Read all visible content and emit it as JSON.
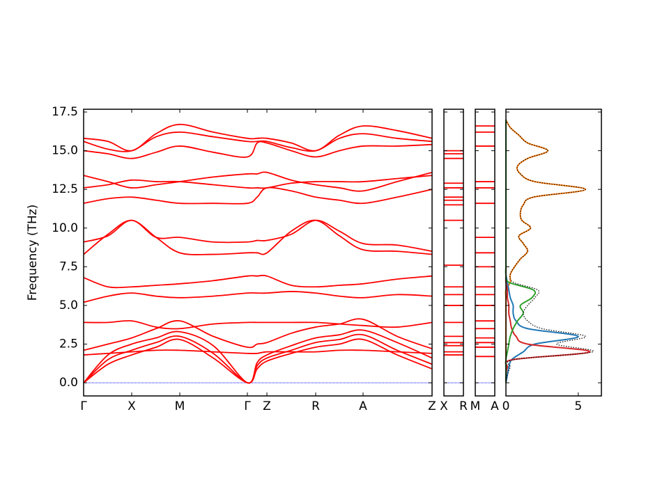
{
  "chart_data": {
    "type": "band",
    "ylabel": "Frequency (THz)",
    "ylim": [
      -0.85,
      17.68
    ],
    "yticks": [
      {
        "value": 0,
        "label": "0.0"
      },
      2.5,
      {
        "value": 5,
        "label": "5.0"
      },
      7.5,
      {
        "value": 10,
        "label": "10.0"
      },
      12.5,
      {
        "value": 15,
        "label": "15.0"
      },
      17.5
    ],
    "color": "#ff0000",
    "zero_color": "#0000ff",
    "panels": [
      {
        "xlim": [
          0,
          500
        ],
        "xticks": [
          {
            "value": 0,
            "label": "Γ"
          },
          {
            "value": 69,
            "label": "X"
          },
          {
            "value": 138,
            "label": "M"
          },
          {
            "value": 235,
            "label": "Γ"
          },
          {
            "value": 263,
            "label": "Z"
          },
          {
            "value": 333,
            "label": "R"
          },
          {
            "value": 401,
            "label": "A"
          },
          {
            "value": 500,
            "label": "Z"
          }
        ],
        "x": [
          0,
          35,
          69,
          104,
          138,
          186,
          235,
          249,
          263,
          298,
          333,
          367,
          401,
          450,
          500
        ],
        "series": [
          {
            "values": [
              0,
              1.2,
              1.8,
              2.3,
              2.8,
              1.6,
              0,
              0.9,
              1.4,
              1.9,
              2.3,
              2.5,
              2.8,
              1.8,
              0.9
            ]
          },
          {
            "values": [
              0,
              1.5,
              2.1,
              2.6,
              3.0,
              1.9,
              0,
              1.1,
              1.6,
              2.1,
              2.6,
              2.8,
              3.1,
              2.1,
              1.2
            ]
          },
          {
            "values": [
              0,
              1.8,
              2.5,
              2.9,
              3.3,
              2.4,
              0,
              1.3,
              1.8,
              2.4,
              2.9,
              3.1,
              3.4,
              2.6,
              1.6
            ]
          },
          {
            "values": [
              1.8,
              1.9,
              2.0,
              2.1,
              2.1,
              2.0,
              1.9,
              1.9,
              2.0,
              2.0,
              2.0,
              2.1,
              2.1,
              2.0,
              1.9
            ]
          },
          {
            "values": [
              2.1,
              2.5,
              2.9,
              3.5,
              4.0,
              3.0,
              2.3,
              2.5,
              2.6,
              3.2,
              3.6,
              3.8,
              4.1,
              3.0,
              2.2
            ]
          },
          {
            "values": [
              3.9,
              3.9,
              4.0,
              3.6,
              3.5,
              3.8,
              3.9,
              3.9,
              3.9,
              3.9,
              3.9,
              3.8,
              3.7,
              3.6,
              3.9
            ]
          },
          {
            "values": [
              5.2,
              5.6,
              5.8,
              5.6,
              5.5,
              5.6,
              5.8,
              5.8,
              5.8,
              5.9,
              5.8,
              5.6,
              5.5,
              5.7,
              5.6
            ]
          },
          {
            "values": [
              6.8,
              6.2,
              6.2,
              6.3,
              6.4,
              6.6,
              6.9,
              6.9,
              6.9,
              6.3,
              6.2,
              6.3,
              6.4,
              6.7,
              6.9
            ]
          },
          {
            "values": [
              8.3,
              9.6,
              10.5,
              9.4,
              8.4,
              8.3,
              8.4,
              8.4,
              8.4,
              9.8,
              10.5,
              9.5,
              8.6,
              8.5,
              8.3
            ]
          },
          {
            "values": [
              9.1,
              9.5,
              10.5,
              9.4,
              9.4,
              9.1,
              9.1,
              9.2,
              9.2,
              9.6,
              10.5,
              9.8,
              9.0,
              8.9,
              8.5
            ]
          },
          {
            "values": [
              11.6,
              11.9,
              12.0,
              11.8,
              11.6,
              11.6,
              11.6,
              12.0,
              12.6,
              12.4,
              12.0,
              11.8,
              11.6,
              12.0,
              12.5
            ]
          },
          {
            "values": [
              12.6,
              12.8,
              13.1,
              13.0,
              13.0,
              12.8,
              12.6,
              12.6,
              12.6,
              12.9,
              13.0,
              13.0,
              13.0,
              13.2,
              13.4
            ]
          },
          {
            "values": [
              13.4,
              13.0,
              12.6,
              12.8,
              13.0,
              13.3,
              13.5,
              13.5,
              13.6,
              13.1,
              12.8,
              12.6,
              12.4,
              13.0,
              13.6
            ]
          },
          {
            "values": [
              15.0,
              14.8,
              14.5,
              14.9,
              15.3,
              14.9,
              14.6,
              15.5,
              15.5,
              15.0,
              14.6,
              15.0,
              15.3,
              15.3,
              15.4
            ]
          },
          {
            "values": [
              15.6,
              15.1,
              15.0,
              15.9,
              16.2,
              15.9,
              15.6,
              15.6,
              15.6,
              15.2,
              15.0,
              15.8,
              16.1,
              15.8,
              15.6
            ]
          },
          {
            "values": [
              15.8,
              15.6,
              15.0,
              16.1,
              16.7,
              16.2,
              15.8,
              15.8,
              15.8,
              15.5,
              15.0,
              16.0,
              16.6,
              16.3,
              15.8
            ]
          }
        ]
      },
      {
        "xlim": [
          0,
          1
        ],
        "xticks": [
          {
            "value": 0,
            "label": "X"
          },
          {
            "value": 1,
            "label": "R"
          }
        ],
        "levels": [
          1.8,
          2.0,
          2.4,
          2.6,
          3.0,
          3.9,
          5.0,
          5.7,
          6.2,
          7.6,
          10.5,
          11.5,
          11.8,
          12.0,
          12.6,
          12.9,
          14.5,
          14.8,
          15.0
        ]
      },
      {
        "xlim": [
          0,
          1
        ],
        "xticks": [
          {
            "value": 0,
            "label": "M"
          },
          {
            "value": 1,
            "label": "A"
          }
        ],
        "levels": [
          1.7,
          2.3,
          2.6,
          2.9,
          3.5,
          4.0,
          5.0,
          5.7,
          6.2,
          7.5,
          8.4,
          9.4,
          11.6,
          12.6,
          13.0,
          15.3,
          16.2,
          16.6
        ]
      }
    ],
    "dos": {
      "xlim": [
        0,
        6.6
      ],
      "xticks": [
        0,
        5
      ],
      "frequencies": [
        0,
        0.5,
        1,
        1.5,
        2,
        2.5,
        3,
        3.5,
        4,
        4.5,
        5,
        5.5,
        6,
        6.5,
        7,
        7.5,
        8,
        8.5,
        9,
        9.5,
        10,
        10.5,
        11,
        11.5,
        12,
        12.5,
        13,
        13.5,
        14,
        14.5,
        15,
        15.5,
        16,
        16.5,
        17
      ],
      "series": [
        {
          "color": "#ff7f0e",
          "values": [
            0,
            0,
            0,
            0,
            0,
            0,
            0,
            0,
            0,
            0,
            0,
            0,
            0,
            0.3,
            0.3,
            0.6,
            1.0,
            1.5,
            1.2,
            0.9,
            1.7,
            1.1,
            1.0,
            1.2,
            1.9,
            5.5,
            2.0,
            1.0,
            0.8,
            1.5,
            2.9,
            1.5,
            0.9,
            0.3,
            0
          ]
        },
        {
          "color": "#1f77b4",
          "values": [
            0,
            0.1,
            0.2,
            0.4,
            1.2,
            2.0,
            5.0,
            1.5,
            0.7,
            0.5,
            0.5,
            0.3,
            0.2,
            0.1,
            0,
            0,
            0,
            0,
            0,
            0,
            0,
            0,
            0,
            0,
            0,
            0,
            0,
            0,
            0,
            0,
            0,
            0,
            0,
            0,
            0
          ]
        },
        {
          "color": "#d62728",
          "values": [
            0,
            0,
            0.1,
            0.5,
            5.8,
            1.5,
            0.7,
            0.4,
            0.3,
            0.2,
            0.2,
            0.1,
            0.1,
            0,
            0,
            0,
            0,
            0,
            0,
            0,
            0,
            0,
            0,
            0,
            0,
            0,
            0,
            0,
            0,
            0,
            0,
            0,
            0,
            0,
            0
          ]
        },
        {
          "color": "#2ca02c",
          "values": [
            0,
            0,
            0,
            0,
            0.1,
            0.2,
            0.3,
            0.5,
            0.8,
            1.2,
            1.0,
            1.8,
            1.9,
            0.2,
            0,
            0,
            0,
            0,
            0,
            0,
            0,
            0,
            0,
            0,
            0,
            0,
            0,
            0,
            0,
            0,
            0,
            0,
            0,
            0,
            0
          ]
        },
        {
          "color": "#000000",
          "style": "dotted",
          "values": [
            0,
            0.1,
            0.3,
            0.6,
            6.0,
            3.5,
            5.5,
            2.5,
            1.5,
            1.2,
            1.5,
            2.0,
            2.2,
            0.5,
            0.3,
            0.6,
            1.0,
            1.5,
            1.2,
            0.9,
            1.7,
            1.1,
            1.0,
            1.2,
            1.9,
            5.5,
            2.0,
            1.0,
            0.8,
            1.5,
            2.9,
            1.5,
            0.9,
            0.3,
            0
          ]
        }
      ]
    }
  }
}
